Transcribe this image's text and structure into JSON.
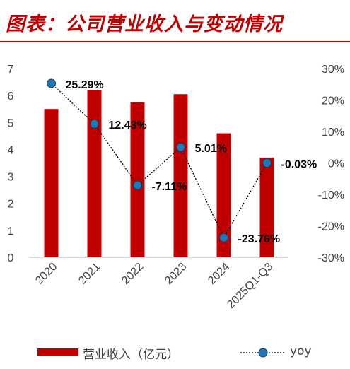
{
  "header": {
    "title": "图表：公司营业收入与变动情况"
  },
  "chart_data": {
    "type": "bar",
    "categories": [
      "2020",
      "2021",
      "2022",
      "2023",
      "2024",
      "2025Q1-Q3"
    ],
    "series": [
      {
        "name": "营业收入（亿元）",
        "type": "bar",
        "axis": "left",
        "values": [
          5.5,
          6.2,
          5.75,
          6.05,
          4.6,
          3.7
        ]
      },
      {
        "name": "yoy",
        "type": "line",
        "axis": "right",
        "values": [
          25.29,
          12.43,
          -7.11,
          5.01,
          -23.76,
          -0.03
        ],
        "labels": [
          "25.29%",
          "12.43%",
          "-7.11%",
          "5.01%",
          "-23.76%",
          "-0.03%"
        ]
      }
    ],
    "y_left": {
      "min": 0,
      "max": 7,
      "ticks": [
        "0",
        "1",
        "2",
        "3",
        "4",
        "5",
        "6",
        "7"
      ]
    },
    "y_right": {
      "min": -30,
      "max": 30,
      "ticks": [
        "-30%",
        "-20%",
        "-10%",
        "0%",
        "10%",
        "20%",
        "30%"
      ]
    },
    "grid": false,
    "legend_position": "bottom",
    "colors": {
      "bar": "#c00000",
      "line": "#000000",
      "marker": "#1f77b4"
    }
  }
}
